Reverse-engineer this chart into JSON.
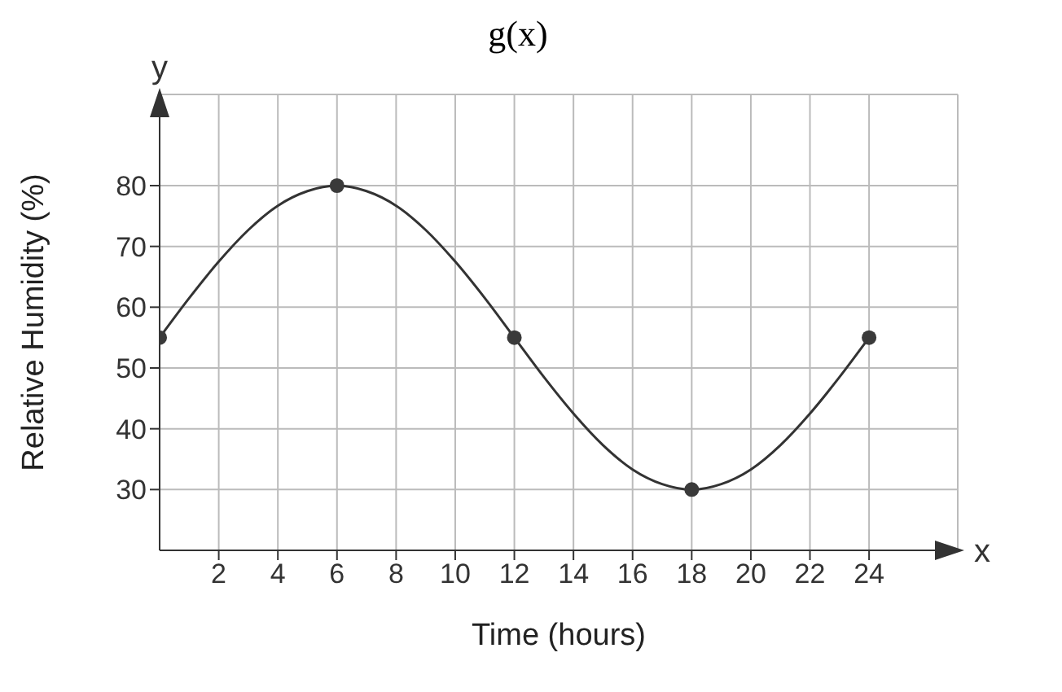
{
  "chart_data": {
    "type": "line",
    "title": "g(x)",
    "xlabel": "Time (hours)",
    "ylabel": "Relative Humidity (%)",
    "annotations": [
      "y",
      "x"
    ],
    "x": [
      0,
      1,
      2,
      3,
      4,
      5,
      6,
      7,
      8,
      9,
      10,
      11,
      12,
      13,
      14,
      15,
      16,
      17,
      18,
      19,
      20,
      21,
      22,
      23,
      24
    ],
    "series": [
      {
        "color": "#333333",
        "marker": "none",
        "values": [
          55,
          61.5,
          67.5,
          72.7,
          76.7,
          79.1,
          80,
          79.1,
          76.7,
          72.7,
          67.5,
          61.5,
          55,
          48.5,
          42.5,
          37.3,
          33.3,
          30.9,
          30,
          30.9,
          33.3,
          37.3,
          42.5,
          48.5,
          55
        ]
      },
      {
        "type": "scatter",
        "x": [
          0,
          6,
          12,
          18,
          24
        ],
        "color": "#3a3a3a",
        "marker": "circle",
        "values": [
          55,
          80,
          55,
          30,
          55
        ]
      }
    ],
    "xlim": [
      0,
      27
    ],
    "xticks": [
      2,
      4,
      6,
      8,
      10,
      12,
      14,
      16,
      18,
      20,
      22,
      24
    ],
    "ylim": [
      20,
      95
    ],
    "yticks": [
      30,
      40,
      50,
      60,
      70,
      80
    ],
    "grid": true
  }
}
